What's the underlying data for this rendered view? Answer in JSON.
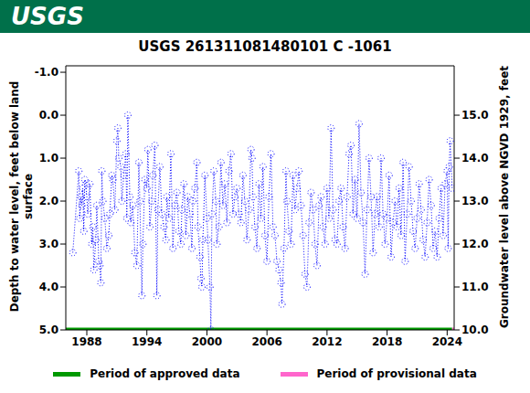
{
  "logo_text": "USGS",
  "chart_data": {
    "type": "line",
    "title": "USGS 261311081480101 C  -1061",
    "ylabel": "Depth to water level, feet below land surface",
    "y2label": "Groundwater level above NGVD 1929, feet",
    "color": "#0000ff",
    "marker": "circle",
    "line_style": "dotted",
    "grid": false,
    "legend": "bottom",
    "xlim": [
      1985.9,
      2024.7
    ],
    "xticks": [
      1988,
      1994,
      2000,
      2006,
      2012,
      2018,
      2024
    ],
    "ylim": [
      -1.15,
      5.0
    ],
    "yticks": [
      {
        "value": -1,
        "label": "-1.0"
      },
      {
        "value": 0,
        "label": "0.0"
      },
      {
        "value": 1,
        "label": "1.0"
      },
      {
        "value": 2,
        "label": "2.0"
      },
      {
        "value": 3,
        "label": "3.0"
      },
      {
        "value": 4,
        "label": "4.0"
      },
      {
        "value": 5,
        "label": "5.0"
      }
    ],
    "y2lim": [
      10.0,
      16.15
    ],
    "y2ticks": [
      {
        "value": 10,
        "label": "10.0"
      },
      {
        "value": 11,
        "label": "11.0"
      },
      {
        "value": 12,
        "label": "12.0"
      },
      {
        "value": 13,
        "label": "13.0"
      },
      {
        "value": 14,
        "label": "14.0"
      },
      {
        "value": 15,
        "label": "15.0"
      }
    ],
    "x": [
      1986.6,
      1987.2,
      1987.3,
      1987.4,
      1987.5,
      1987.6,
      1987.7,
      1987.8,
      1987.9,
      1988.0,
      1988.1,
      1988.3,
      1988.5,
      1988.6,
      1988.7,
      1988.9,
      1989.0,
      1989.2,
      1989.3,
      1989.4,
      1989.5,
      1989.6,
      1989.8,
      1990.0,
      1990.2,
      1990.3,
      1990.5,
      1990.6,
      1990.8,
      1991.0,
      1991.1,
      1991.2,
      1991.4,
      1991.5,
      1991.7,
      1991.9,
      1992.0,
      1992.1,
      1992.3,
      1992.4,
      1992.6,
      1992.8,
      1993.0,
      1993.2,
      1993.3,
      1993.5,
      1993.6,
      1993.8,
      1994.0,
      1994.1,
      1994.3,
      1994.5,
      1994.6,
      1994.8,
      1995.0,
      1995.1,
      1995.3,
      1995.5,
      1995.7,
      1995.9,
      1996.0,
      1996.2,
      1996.4,
      1996.6,
      1996.8,
      1997.0,
      1997.2,
      1997.4,
      1997.5,
      1997.7,
      1997.9,
      1998.1,
      1998.3,
      1998.5,
      1998.6,
      1998.8,
      1999.0,
      1999.1,
      1999.3,
      1999.4,
      1999.5,
      1999.6,
      1999.8,
      2000.0,
      2000.1,
      2000.3,
      2000.4,
      2000.5,
      2000.7,
      2000.9,
      2001.0,
      2001.2,
      2001.4,
      2001.6,
      2001.8,
      2002.0,
      2002.2,
      2002.4,
      2002.6,
      2002.8,
      2003.0,
      2003.2,
      2003.4,
      2003.6,
      2003.8,
      2004.0,
      2004.2,
      2004.4,
      2004.5,
      2004.6,
      2004.8,
      2005.0,
      2005.2,
      2005.4,
      2005.6,
      2005.8,
      2006.0,
      2006.2,
      2006.4,
      2006.6,
      2006.8,
      2007.0,
      2007.2,
      2007.4,
      2007.5,
      2007.7,
      2007.9,
      2008.0,
      2008.2,
      2008.4,
      2008.6,
      2008.8,
      2009.0,
      2009.2,
      2009.4,
      2009.6,
      2009.8,
      2010.0,
      2010.2,
      2010.4,
      2010.6,
      2010.8,
      2011.0,
      2011.2,
      2011.4,
      2011.6,
      2011.8,
      2012.0,
      2012.2,
      2012.4,
      2012.6,
      2012.8,
      2013.0,
      2013.2,
      2013.4,
      2013.6,
      2013.8,
      2014.0,
      2014.2,
      2014.4,
      2014.6,
      2014.8,
      2015.0,
      2015.2,
      2015.4,
      2015.6,
      2015.8,
      2016.0,
      2016.2,
      2016.4,
      2016.6,
      2016.8,
      2017.0,
      2017.2,
      2017.4,
      2017.6,
      2017.8,
      2018.0,
      2018.2,
      2018.4,
      2018.6,
      2018.8,
      2019.0,
      2019.2,
      2019.4,
      2019.6,
      2019.8,
      2020.0,
      2020.2,
      2020.4,
      2020.6,
      2020.8,
      2021.0,
      2021.2,
      2021.4,
      2021.6,
      2021.8,
      2022.0,
      2022.2,
      2022.4,
      2022.6,
      2022.8,
      2023.0,
      2023.2,
      2023.4,
      2023.6,
      2023.8,
      2024.0,
      2024.1,
      2024.2,
      2024.3,
      2024.5
    ],
    "values": [
      3.2,
      1.3,
      2.4,
      1.9,
      2.1,
      1.7,
      2.7,
      1.5,
      1.6,
      1.9,
      2.3,
      1.6,
      3.0,
      2.6,
      3.6,
      2.9,
      2.1,
      3.4,
      3.5,
      3.9,
      1.3,
      2.0,
      2.4,
      3.1,
      2.8,
      2.3,
      1.4,
      1.5,
      2.2,
      0.6,
      0.3,
      1.0,
      1.2,
      2.0,
      1.4,
      0.9,
      2.4,
      0.0,
      1.9,
      2.5,
      2.1,
      3.2,
      3.5,
      1.1,
      2.0,
      4.2,
      3.0,
      1.5,
      1.7,
      0.8,
      2.6,
      2.0,
      1.4,
      0.7,
      4.2,
      2.2,
      1.2,
      2.3,
      2.6,
      2.9,
      1.9,
      2.4,
      0.9,
      3.1,
      2.1,
      1.8,
      2.7,
      3.0,
      2.2,
      1.6,
      2.8,
      1.9,
      2.3,
      3.1,
      2.0,
      1.7,
      1.1,
      2.6,
      3.3,
      3.8,
      4.0,
      2.9,
      1.4,
      2.4,
      2.9,
      4.0,
      5.0,
      2.3,
      1.3,
      2.0,
      3.0,
      2.6,
      1.1,
      2.1,
      1.6,
      2.5,
      1.3,
      0.9,
      2.3,
      1.9,
      1.7,
      2.3,
      2.5,
      1.4,
      2.0,
      2.9,
      2.2,
      0.8,
      1.0,
      1.9,
      2.6,
      3.1,
      1.6,
      2.4,
      1.2,
      2.8,
      3.4,
      1.9,
      0.9,
      2.6,
      2.8,
      3.4,
      3.6,
      3.9,
      4.4,
      3.1,
      1.3,
      2.0,
      2.7,
      3.0,
      1.4,
      2.2,
      1.7,
      1.3,
      2.1,
      2.8,
      3.7,
      4.0,
      2.5,
      1.8,
      2.2,
      3.0,
      3.5,
      2.1,
      1.9,
      2.6,
      3.0,
      1.7,
      2.4,
      0.3,
      2.2,
      2.9,
      3.0,
      2.0,
      1.7,
      2.6,
      3.1,
      1.9,
      0.9,
      0.7,
      2.3,
      1.5,
      2.4,
      0.2,
      1.8,
      2.5,
      3.7,
      2.2,
      1.0,
      1.9,
      3.2,
      2.3,
      1.9,
      2.6,
      1.0,
      2.3,
      3.0,
      2.4,
      1.4,
      3.3,
      2.5,
      2.0,
      2.6,
      1.7,
      2.8,
      1.1,
      3.4,
      2.3,
      1.2,
      2.0,
      2.7,
      3.1,
      2.4,
      1.6,
      2.2,
      2.9,
      3.3,
      2.5,
      1.5,
      2.1,
      3.1,
      2.7,
      3.3,
      2.4,
      1.7,
      2.8,
      1.6,
      1.3,
      3.1,
      1.2,
      0.6,
      1.7
    ],
    "series": [
      {
        "name": "Period of approved data",
        "color": "#009900",
        "x": [
          1985.9,
          2024.5
        ],
        "values": [
          5.0,
          5.0
        ]
      },
      {
        "name": "Period of provisional data",
        "color": "#ff66cc",
        "x": [
          2024.5,
          2024.7
        ],
        "values": [
          5.0,
          5.0
        ]
      }
    ]
  }
}
